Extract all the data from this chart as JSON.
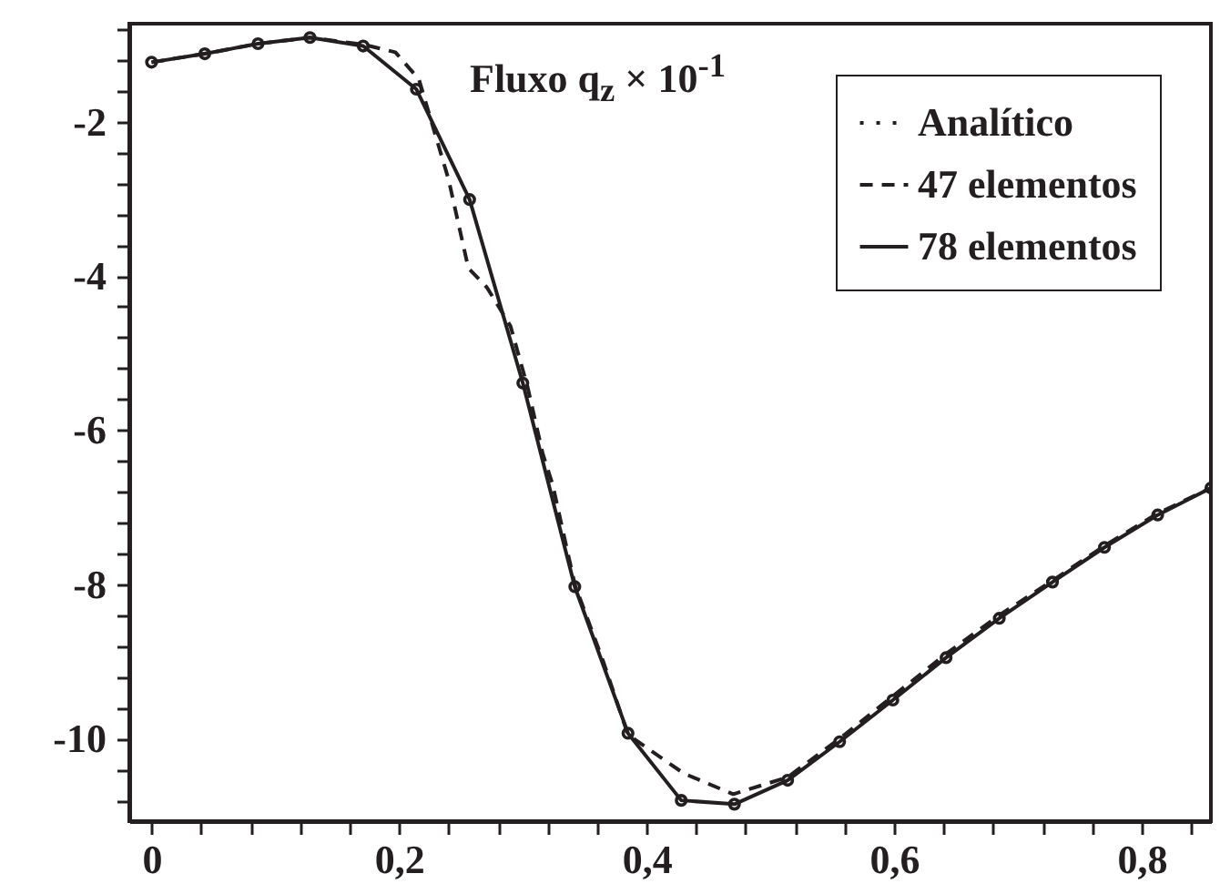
{
  "chart_data": {
    "type": "line",
    "title": "Fluxo q$_{z}$ × 10$^{-1}$",
    "xlim": [
      -0.018,
      0.856
    ],
    "ylim": [
      -11.07,
      -0.73
    ],
    "xticks": [
      {
        "value": 0,
        "label": "0"
      },
      {
        "value": 0.04,
        "label": null
      },
      {
        "value": 0.08,
        "label": null
      },
      {
        "value": 0.12,
        "label": null
      },
      {
        "value": 0.16,
        "label": null
      },
      {
        "value": 0.2,
        "label": "0,2"
      },
      {
        "value": 0.24,
        "label": null
      },
      {
        "value": 0.28,
        "label": null
      },
      {
        "value": 0.32,
        "label": null
      },
      {
        "value": 0.36,
        "label": null
      },
      {
        "value": 0.4,
        "label": "0,4"
      },
      {
        "value": 0.44,
        "label": null
      },
      {
        "value": 0.48,
        "label": null
      },
      {
        "value": 0.52,
        "label": null
      },
      {
        "value": 0.56,
        "label": null
      },
      {
        "value": 0.6,
        "label": "0,6"
      },
      {
        "value": 0.64,
        "label": null
      },
      {
        "value": 0.68,
        "label": null
      },
      {
        "value": 0.72,
        "label": null
      },
      {
        "value": 0.76,
        "label": null
      },
      {
        "value": 0.8,
        "label": "0,8"
      },
      {
        "value": 0.84,
        "label": null
      }
    ],
    "yticks": [
      {
        "value": -0.8,
        "label": null
      },
      {
        "value": -1.2,
        "label": null
      },
      {
        "value": -1.6,
        "label": null
      },
      -2,
      {
        "value": -2.4,
        "label": null
      },
      {
        "value": -2.8,
        "label": null
      },
      {
        "value": -3.2,
        "label": null
      },
      {
        "value": -3.6,
        "label": null
      },
      -4,
      {
        "value": -4.4,
        "label": null
      },
      {
        "value": -4.8,
        "label": null
      },
      {
        "value": -5.2,
        "label": null
      },
      {
        "value": -5.6,
        "label": null
      },
      -6,
      {
        "value": -6.4,
        "label": null
      },
      {
        "value": -6.8,
        "label": null
      },
      {
        "value": -7.2,
        "label": null
      },
      {
        "value": -7.6,
        "label": null
      },
      -8,
      {
        "value": -8.4,
        "label": null
      },
      {
        "value": -8.8,
        "label": null
      },
      {
        "value": -9.2,
        "label": null
      },
      {
        "value": -9.6,
        "label": null
      },
      -10,
      {
        "value": -10.4,
        "label": null
      },
      {
        "value": -10.8,
        "label": null
      }
    ],
    "grid": false,
    "legend": "top right",
    "series": [
      {
        "name": "Analítico",
        "type": "scatter",
        "marker": "circle",
        "color": "#231f20",
        "x": [
          0,
          0.043,
          0.086,
          0.128,
          0.171,
          0.214,
          0.257,
          0.3,
          0.342,
          0.385,
          0.428,
          0.471,
          0.514,
          0.556,
          0.599,
          0.642,
          0.685,
          0.728,
          0.77,
          0.813,
          0.856
        ],
        "values": [
          -1.23,
          -1.12,
          -0.99,
          -0.91,
          -1.02,
          -1.58,
          -3.01,
          -5.39,
          -8.03,
          -9.93,
          -10.8,
          -10.85,
          -10.54,
          -10.04,
          -9.5,
          -8.95,
          -8.44,
          -7.97,
          -7.52,
          -7.1,
          -6.75
        ]
      },
      {
        "name": "47 elementos",
        "line_style": "dashed",
        "color": "#231f20",
        "x": [
          0,
          0.043,
          0.086,
          0.128,
          0.171,
          0.197,
          0.216,
          0.24,
          0.256,
          0.271,
          0.29,
          0.304,
          0.316,
          0.324,
          0.342,
          0.365,
          0.385,
          0.43,
          0.47,
          0.514,
          0.556,
          0.599,
          0.642,
          0.685,
          0.728,
          0.77,
          0.813,
          0.856
        ],
        "values": [
          -1.23,
          -1.12,
          -0.99,
          -0.91,
          -1.0,
          -1.1,
          -1.45,
          -2.75,
          -3.9,
          -4.15,
          -4.65,
          -5.45,
          -6.3,
          -6.7,
          -8.0,
          -9.0,
          -9.95,
          -10.45,
          -10.72,
          -10.5,
          -10.0,
          -9.45,
          -8.9,
          -8.4,
          -7.95,
          -7.5,
          -7.08,
          -6.75
        ]
      },
      {
        "name": "78 elementos",
        "line_style": "solid",
        "color": "#231f20",
        "x": [
          0,
          0.043,
          0.086,
          0.128,
          0.171,
          0.214,
          0.257,
          0.3,
          0.342,
          0.385,
          0.428,
          0.471,
          0.514,
          0.556,
          0.599,
          0.642,
          0.685,
          0.728,
          0.77,
          0.813,
          0.856
        ],
        "values": [
          -1.23,
          -1.12,
          -0.99,
          -0.91,
          -1.02,
          -1.58,
          -3.01,
          -5.39,
          -8.03,
          -9.93,
          -10.8,
          -10.85,
          -10.54,
          -10.04,
          -9.5,
          -8.95,
          -8.44,
          -7.97,
          -7.52,
          -7.1,
          -6.75
        ]
      }
    ]
  }
}
